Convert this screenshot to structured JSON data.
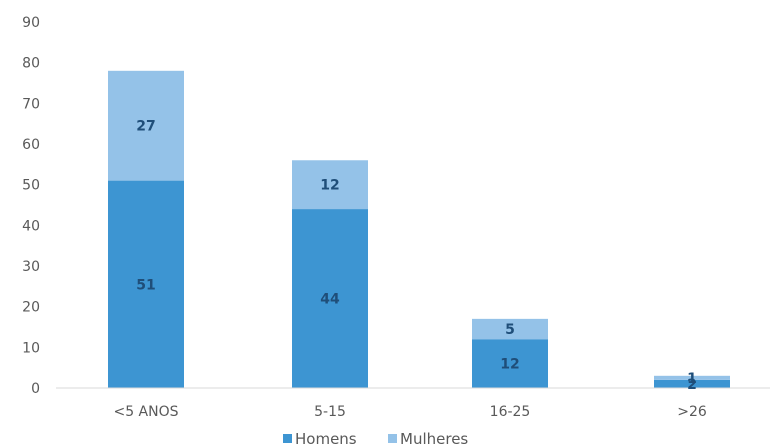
{
  "chart_data": {
    "type": "bar",
    "stacked": true,
    "categories": [
      "<5 ANOS",
      "5-15",
      "16-25",
      ">26"
    ],
    "series": [
      {
        "name": "Homens",
        "values": [
          51,
          44,
          12,
          2
        ],
        "color": "#3d95d2"
      },
      {
        "name": "Mulheres",
        "values": [
          27,
          12,
          5,
          1
        ],
        "color": "#94c2e8"
      }
    ],
    "ylim": [
      0,
      90
    ],
    "yticks": [
      "0",
      "10",
      "20",
      "30",
      "40",
      "50",
      "60",
      "70",
      "80",
      "90"
    ],
    "grid": false,
    "legend_position": "bottom",
    "title": "",
    "xlabel": "",
    "ylabel": ""
  }
}
